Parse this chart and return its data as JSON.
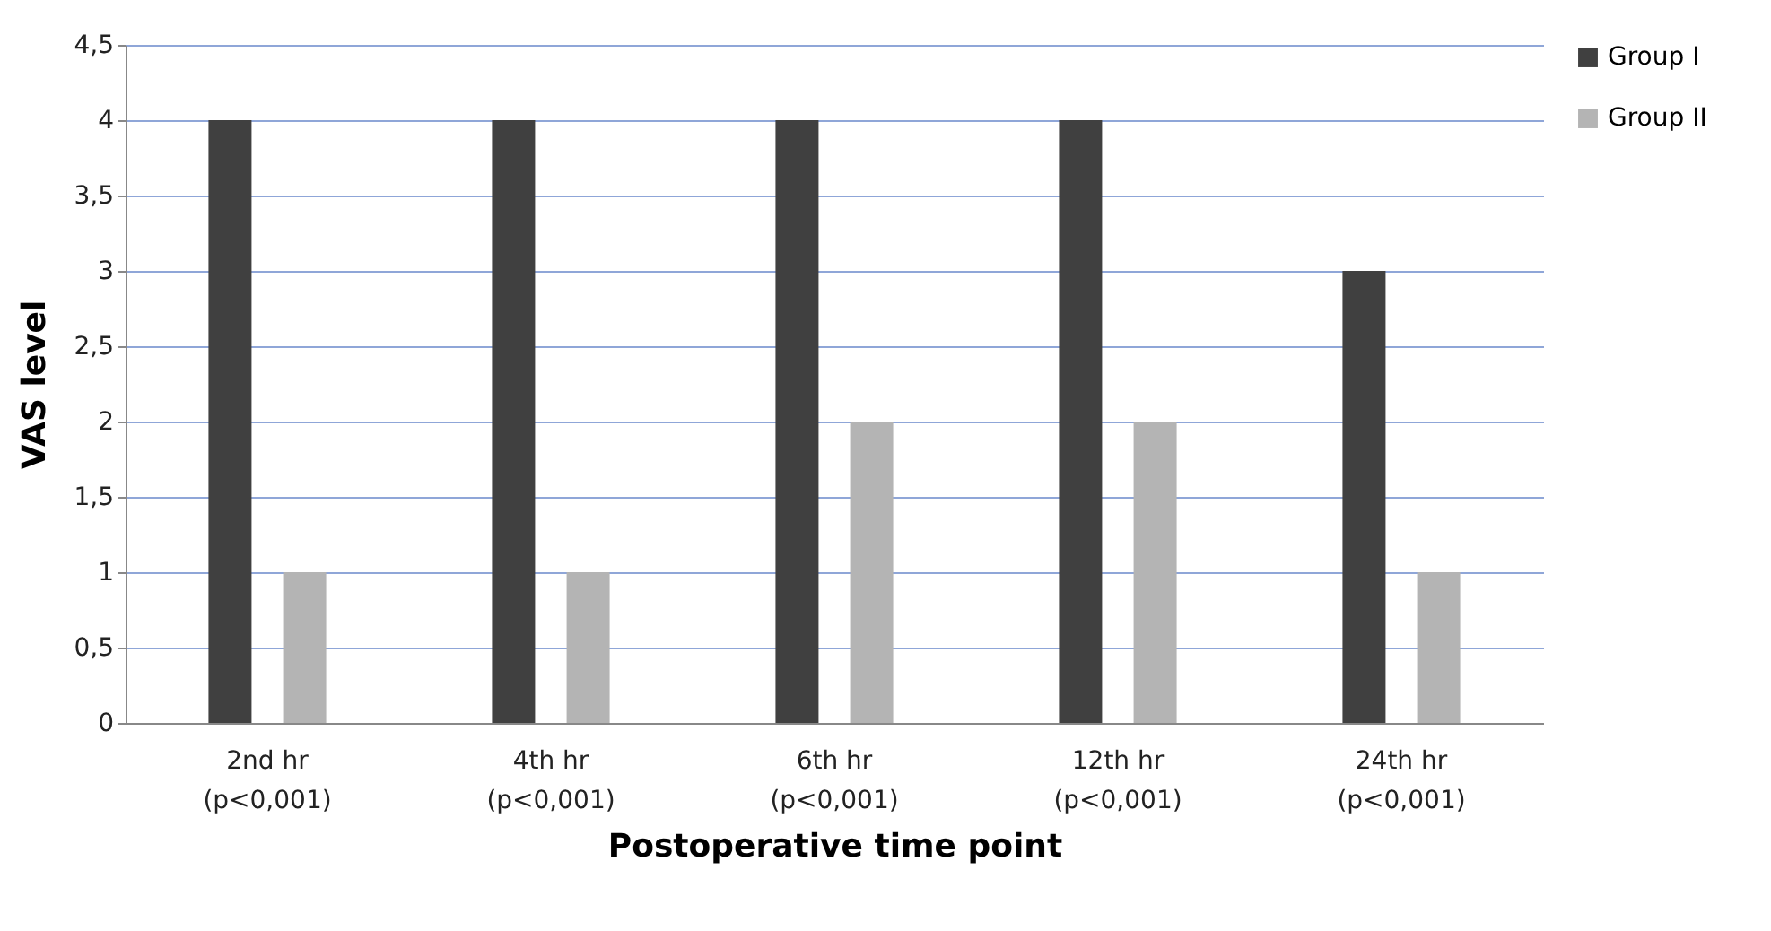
{
  "chart_data": {
    "type": "bar",
    "xlabel": "Postoperative time point",
    "ylabel": "VAS level",
    "categories": [
      "2nd hr\n(p<0,001)",
      "4th hr\n(p<0,001)",
      "6th hr\n(p<0,001)",
      "12th hr\n(p<0,001)",
      "24th hr\n(p<0,001)"
    ],
    "series": [
      {
        "name": "Group I",
        "color": "#404040",
        "values": [
          4,
          4,
          4,
          4,
          3
        ]
      },
      {
        "name": "Group II",
        "color": "#b4b4b4",
        "values": [
          1,
          1,
          2,
          2,
          1
        ]
      }
    ],
    "ylim": [
      0,
      4.5
    ],
    "yticks": [
      0,
      {
        "value": 0.5,
        "label": "0,5"
      },
      1,
      {
        "value": 1.5,
        "label": "1,5"
      },
      2,
      {
        "value": 2.5,
        "label": "2,5"
      },
      3,
      {
        "value": 3.5,
        "label": "3,5"
      },
      4,
      {
        "value": 4.5,
        "label": "4,5"
      }
    ],
    "grid": "y",
    "legend": "right"
  }
}
